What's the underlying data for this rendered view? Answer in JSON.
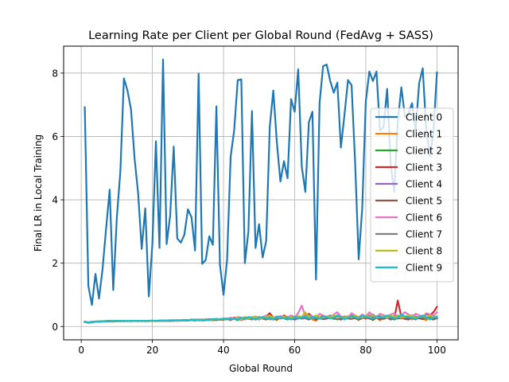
{
  "chart_data": {
    "type": "line",
    "title": "Learning Rate per Client per Global Round (FedAvg + SASS)",
    "xlabel": "Global Round",
    "ylabel": "Final LR in Local Training",
    "xlim": [
      -4.95,
      105.95
    ],
    "ylim": [
      -0.42,
      8.85
    ],
    "xticks": [
      0,
      20,
      40,
      60,
      80,
      100
    ],
    "yticks": [
      0,
      2,
      4,
      6,
      8
    ],
    "grid": true,
    "legend_position": "center right",
    "x": [
      1,
      2,
      3,
      4,
      5,
      6,
      7,
      8,
      9,
      10,
      11,
      12,
      13,
      14,
      15,
      16,
      17,
      18,
      19,
      20,
      21,
      22,
      23,
      24,
      25,
      26,
      27,
      28,
      29,
      30,
      31,
      32,
      33,
      34,
      35,
      36,
      37,
      38,
      39,
      40,
      41,
      42,
      43,
      44,
      45,
      46,
      47,
      48,
      49,
      50,
      51,
      52,
      53,
      54,
      55,
      56,
      57,
      58,
      59,
      60,
      61,
      62,
      63,
      64,
      65,
      66,
      67,
      68,
      69,
      70,
      71,
      72,
      73,
      74,
      75,
      76,
      77,
      78,
      79,
      80,
      81,
      82,
      83,
      84,
      85,
      86,
      87,
      88,
      89,
      90,
      91,
      92,
      93,
      94,
      95,
      96,
      97,
      98,
      99,
      100
    ],
    "series": [
      {
        "name": "Client 0",
        "color": "#1f77b4",
        "values": [
          6.92,
          1.28,
          0.68,
          1.66,
          0.88,
          1.82,
          3.1,
          4.32,
          1.15,
          3.42,
          4.9,
          7.83,
          7.45,
          6.85,
          5.3,
          4.2,
          2.45,
          3.73,
          0.95,
          2.6,
          5.85,
          2.48,
          8.43,
          2.6,
          3.5,
          5.68,
          2.78,
          2.65,
          2.9,
          3.7,
          3.45,
          2.4,
          7.98,
          1.98,
          2.1,
          2.85,
          2.58,
          6.95,
          1.95,
          1.0,
          2.1,
          5.35,
          6.2,
          7.78,
          7.8,
          2.0,
          3.0,
          6.8,
          2.48,
          3.23,
          2.18,
          2.7,
          6.3,
          7.45,
          5.8,
          4.58,
          5.22,
          4.68,
          7.18,
          6.78,
          8.12,
          5.05,
          4.25,
          6.45,
          6.78,
          1.48,
          7.05,
          8.22,
          8.27,
          7.75,
          7.38,
          7.7,
          5.65,
          6.68,
          7.78,
          7.62,
          5.18,
          2.12,
          3.75,
          7.1,
          8.05,
          7.75,
          8.05,
          6.18,
          6.3,
          7.5,
          5.12,
          4.25,
          6.48,
          7.55,
          6.62,
          6.72,
          7.05,
          6.18,
          7.68,
          8.15,
          6.2,
          5.38,
          6.1,
          8.02
        ]
      },
      {
        "name": "Client 1",
        "color": "#ff7f0e",
        "values": [
          0.16,
          0.12,
          0.14,
          0.15,
          0.16,
          0.16,
          0.17,
          0.17,
          0.17,
          0.17,
          0.17,
          0.18,
          0.17,
          0.18,
          0.18,
          0.18,
          0.17,
          0.17,
          0.17,
          0.18,
          0.17,
          0.18,
          0.17,
          0.18,
          0.18,
          0.19,
          0.18,
          0.19,
          0.18,
          0.2,
          0.21,
          0.22,
          0.19,
          0.2,
          0.21,
          0.2,
          0.2,
          0.22,
          0.22,
          0.21,
          0.26,
          0.23,
          0.27,
          0.28,
          0.2,
          0.25,
          0.28,
          0.25,
          0.28,
          0.3,
          0.26,
          0.3,
          0.22,
          0.25,
          0.2,
          0.32,
          0.3,
          0.28,
          0.35,
          0.22,
          0.25,
          0.3,
          0.4,
          0.35,
          0.22,
          0.18,
          0.3,
          0.35,
          0.28,
          0.3,
          0.25,
          0.35,
          0.22,
          0.28,
          0.33,
          0.3,
          0.28,
          0.2,
          0.32,
          0.25,
          0.36,
          0.3,
          0.28,
          0.2,
          0.35,
          0.3,
          0.22,
          0.28,
          0.33,
          0.25,
          0.3,
          0.35,
          0.22,
          0.28,
          0.3,
          0.25,
          0.2,
          0.33,
          0.28,
          0.25
        ]
      },
      {
        "name": "Client 2",
        "color": "#2ca02c",
        "values": [
          0.15,
          0.13,
          0.14,
          0.16,
          0.16,
          0.17,
          0.17,
          0.18,
          0.17,
          0.17,
          0.18,
          0.17,
          0.18,
          0.18,
          0.17,
          0.18,
          0.18,
          0.17,
          0.18,
          0.18,
          0.18,
          0.17,
          0.18,
          0.19,
          0.18,
          0.18,
          0.19,
          0.2,
          0.19,
          0.2,
          0.22,
          0.2,
          0.21,
          0.19,
          0.2,
          0.22,
          0.2,
          0.21,
          0.23,
          0.22,
          0.25,
          0.22,
          0.24,
          0.2,
          0.26,
          0.28,
          0.24,
          0.28,
          0.22,
          0.3,
          0.25,
          0.28,
          0.3,
          0.25,
          0.22,
          0.3,
          0.26,
          0.22,
          0.28,
          0.3,
          0.28,
          0.25,
          0.32,
          0.4,
          0.3,
          0.22,
          0.28,
          0.3,
          0.25,
          0.32,
          0.28,
          0.22,
          0.3,
          0.26,
          0.3,
          0.35,
          0.25,
          0.28,
          0.32,
          0.3,
          0.28,
          0.2,
          0.3,
          0.33,
          0.25,
          0.28,
          0.3,
          0.22,
          0.28,
          0.32,
          0.25,
          0.3,
          0.28,
          0.22,
          0.3,
          0.35,
          0.25,
          0.3,
          0.28,
          0.25
        ]
      },
      {
        "name": "Client 3",
        "color": "#d62728",
        "values": [
          0.14,
          0.13,
          0.15,
          0.15,
          0.16,
          0.16,
          0.17,
          0.17,
          0.18,
          0.17,
          0.17,
          0.18,
          0.18,
          0.17,
          0.18,
          0.17,
          0.18,
          0.18,
          0.17,
          0.18,
          0.17,
          0.18,
          0.19,
          0.18,
          0.18,
          0.2,
          0.18,
          0.19,
          0.2,
          0.19,
          0.2,
          0.21,
          0.2,
          0.22,
          0.21,
          0.2,
          0.22,
          0.2,
          0.24,
          0.22,
          0.25,
          0.2,
          0.28,
          0.25,
          0.22,
          0.3,
          0.26,
          0.22,
          0.3,
          0.28,
          0.25,
          0.32,
          0.42,
          0.28,
          0.3,
          0.25,
          0.35,
          0.28,
          0.25,
          0.3,
          0.32,
          0.25,
          0.28,
          0.4,
          0.3,
          0.22,
          0.28,
          0.32,
          0.25,
          0.3,
          0.28,
          0.35,
          0.22,
          0.3,
          0.28,
          0.25,
          0.32,
          0.28,
          0.3,
          0.25,
          0.32,
          0.3,
          0.28,
          0.22,
          0.3,
          0.28,
          0.35,
          0.25,
          0.82,
          0.3,
          0.25,
          0.28,
          0.35,
          0.25,
          0.3,
          0.28,
          0.4,
          0.35,
          0.45,
          0.62
        ]
      },
      {
        "name": "Client 4",
        "color": "#9467bd",
        "values": [
          0.15,
          0.12,
          0.14,
          0.15,
          0.15,
          0.16,
          0.17,
          0.16,
          0.17,
          0.18,
          0.17,
          0.17,
          0.18,
          0.17,
          0.18,
          0.18,
          0.17,
          0.18,
          0.18,
          0.17,
          0.18,
          0.19,
          0.18,
          0.18,
          0.19,
          0.18,
          0.2,
          0.19,
          0.2,
          0.19,
          0.21,
          0.2,
          0.22,
          0.2,
          0.22,
          0.21,
          0.2,
          0.23,
          0.22,
          0.25,
          0.24,
          0.22,
          0.26,
          0.25,
          0.22,
          0.28,
          0.25,
          0.3,
          0.26,
          0.22,
          0.28,
          0.3,
          0.25,
          0.22,
          0.3,
          0.28,
          0.26,
          0.3,
          0.25,
          0.28,
          0.32,
          0.3,
          0.28,
          0.25,
          0.32,
          0.3,
          0.28,
          0.25,
          0.3,
          0.35,
          0.28,
          0.3,
          0.25,
          0.32,
          0.28,
          0.3,
          0.35,
          0.25,
          0.3,
          0.28,
          0.32,
          0.38,
          0.3,
          0.28,
          0.25,
          0.32,
          0.3,
          0.28,
          0.35,
          0.3,
          0.25,
          0.28,
          0.3,
          0.32,
          0.28,
          0.25,
          0.3,
          0.28,
          0.32,
          0.3
        ]
      },
      {
        "name": "Client 5",
        "color": "#8c564b",
        "values": [
          0.14,
          0.13,
          0.14,
          0.15,
          0.16,
          0.16,
          0.16,
          0.17,
          0.17,
          0.17,
          0.18,
          0.17,
          0.17,
          0.18,
          0.18,
          0.17,
          0.18,
          0.17,
          0.18,
          0.18,
          0.17,
          0.18,
          0.18,
          0.19,
          0.18,
          0.19,
          0.18,
          0.2,
          0.19,
          0.2,
          0.2,
          0.19,
          0.21,
          0.2,
          0.21,
          0.22,
          0.2,
          0.22,
          0.21,
          0.22,
          0.24,
          0.22,
          0.25,
          0.23,
          0.22,
          0.26,
          0.24,
          0.25,
          0.22,
          0.27,
          0.25,
          0.22,
          0.28,
          0.25,
          0.23,
          0.27,
          0.28,
          0.24,
          0.25,
          0.22,
          0.28,
          0.25,
          0.26,
          0.22,
          0.28,
          0.25,
          0.27,
          0.23,
          0.25,
          0.28,
          0.24,
          0.26,
          0.22,
          0.28,
          0.25,
          0.24,
          0.27,
          0.22,
          0.26,
          0.28,
          0.25,
          0.22,
          0.27,
          0.25,
          0.24,
          0.28,
          0.22,
          0.26,
          0.25,
          0.27,
          0.24,
          0.22,
          0.28,
          0.25,
          0.26,
          0.23,
          0.28,
          0.25,
          0.22,
          0.27
        ]
      },
      {
        "name": "Client 6",
        "color": "#e377c2",
        "values": [
          0.15,
          0.12,
          0.13,
          0.15,
          0.16,
          0.16,
          0.17,
          0.17,
          0.17,
          0.18,
          0.17,
          0.18,
          0.17,
          0.17,
          0.18,
          0.18,
          0.17,
          0.18,
          0.17,
          0.18,
          0.18,
          0.18,
          0.17,
          0.19,
          0.18,
          0.2,
          0.19,
          0.18,
          0.2,
          0.21,
          0.2,
          0.22,
          0.21,
          0.2,
          0.22,
          0.24,
          0.22,
          0.25,
          0.22,
          0.26,
          0.24,
          0.28,
          0.25,
          0.3,
          0.28,
          0.22,
          0.3,
          0.28,
          0.32,
          0.26,
          0.3,
          0.35,
          0.28,
          0.3,
          0.25,
          0.33,
          0.3,
          0.28,
          0.35,
          0.3,
          0.42,
          0.66,
          0.32,
          0.35,
          0.3,
          0.28,
          0.4,
          0.35,
          0.3,
          0.28,
          0.38,
          0.45,
          0.32,
          0.3,
          0.28,
          0.42,
          0.35,
          0.3,
          0.38,
          0.32,
          0.45,
          0.35,
          0.3,
          0.4,
          0.36,
          0.32,
          0.38,
          0.42,
          0.3,
          0.35,
          0.45,
          0.38,
          0.32,
          0.4,
          0.36,
          0.3,
          0.42,
          0.38,
          0.35,
          0.45
        ]
      },
      {
        "name": "Client 7",
        "color": "#7f7f7f",
        "values": [
          0.14,
          0.13,
          0.14,
          0.15,
          0.15,
          0.16,
          0.16,
          0.17,
          0.17,
          0.17,
          0.17,
          0.18,
          0.18,
          0.17,
          0.18,
          0.17,
          0.18,
          0.18,
          0.18,
          0.17,
          0.18,
          0.18,
          0.19,
          0.18,
          0.19,
          0.19,
          0.2,
          0.19,
          0.2,
          0.2,
          0.21,
          0.2,
          0.21,
          0.22,
          0.21,
          0.22,
          0.22,
          0.23,
          0.22,
          0.24,
          0.23,
          0.22,
          0.25,
          0.24,
          0.23,
          0.25,
          0.26,
          0.24,
          0.25,
          0.27,
          0.25,
          0.26,
          0.24,
          0.27,
          0.26,
          0.25,
          0.28,
          0.26,
          0.27,
          0.25,
          0.28,
          0.27,
          0.26,
          0.28,
          0.25,
          0.27,
          0.28,
          0.26,
          0.29,
          0.27,
          0.28,
          0.26,
          0.29,
          0.28,
          0.27,
          0.3,
          0.28,
          0.27,
          0.29,
          0.28,
          0.3,
          0.27,
          0.29,
          0.28,
          0.3,
          0.29,
          0.27,
          0.3,
          0.28,
          0.29,
          0.3,
          0.28,
          0.29,
          0.27,
          0.3,
          0.29,
          0.28,
          0.3,
          0.29,
          0.28
        ]
      },
      {
        "name": "Client 8",
        "color": "#bcbd22",
        "values": [
          0.15,
          0.12,
          0.14,
          0.15,
          0.16,
          0.16,
          0.17,
          0.17,
          0.18,
          0.17,
          0.18,
          0.17,
          0.18,
          0.18,
          0.17,
          0.18,
          0.17,
          0.18,
          0.18,
          0.18,
          0.17,
          0.19,
          0.18,
          0.18,
          0.2,
          0.19,
          0.18,
          0.2,
          0.19,
          0.21,
          0.2,
          0.22,
          0.2,
          0.21,
          0.23,
          0.2,
          0.22,
          0.24,
          0.22,
          0.25,
          0.22,
          0.26,
          0.24,
          0.28,
          0.22,
          0.3,
          0.25,
          0.27,
          0.3,
          0.24,
          0.28,
          0.3,
          0.35,
          0.26,
          0.3,
          0.28,
          0.32,
          0.25,
          0.3,
          0.28,
          0.33,
          0.3,
          0.45,
          0.3,
          0.28,
          0.35,
          0.3,
          0.28,
          0.32,
          0.3,
          0.35,
          0.28,
          0.3,
          0.26,
          0.32,
          0.28,
          0.35,
          0.3,
          0.28,
          0.33,
          0.3,
          0.35,
          0.28,
          0.3,
          0.32,
          0.28,
          0.35,
          0.3,
          0.33,
          0.28,
          0.3,
          0.35,
          0.32,
          0.28,
          0.3,
          0.33,
          0.28,
          0.35,
          0.3,
          0.32
        ]
      },
      {
        "name": "Client 9",
        "color": "#17becf",
        "values": [
          0.14,
          0.12,
          0.13,
          0.15,
          0.16,
          0.16,
          0.17,
          0.17,
          0.17,
          0.18,
          0.18,
          0.17,
          0.18,
          0.17,
          0.18,
          0.18,
          0.18,
          0.17,
          0.18,
          0.19,
          0.18,
          0.18,
          0.19,
          0.18,
          0.2,
          0.19,
          0.2,
          0.19,
          0.21,
          0.2,
          0.2,
          0.22,
          0.21,
          0.2,
          0.22,
          0.21,
          0.24,
          0.22,
          0.23,
          0.25,
          0.22,
          0.26,
          0.24,
          0.22,
          0.28,
          0.25,
          0.3,
          0.26,
          0.22,
          0.28,
          0.3,
          0.25,
          0.28,
          0.22,
          0.32,
          0.3,
          0.25,
          0.28,
          0.22,
          0.3,
          0.26,
          0.28,
          0.32,
          0.25,
          0.3,
          0.28,
          0.24,
          0.32,
          0.3,
          0.25,
          0.28,
          0.35,
          0.3,
          0.22,
          0.28,
          0.32,
          0.3,
          0.25,
          0.35,
          0.3,
          0.28,
          0.25,
          0.32,
          0.3,
          0.28,
          0.35,
          0.3,
          0.26,
          0.28,
          0.38,
          0.32,
          0.3,
          0.28,
          0.25,
          0.3,
          0.35,
          0.3,
          0.22,
          0.28,
          0.3
        ]
      }
    ]
  }
}
